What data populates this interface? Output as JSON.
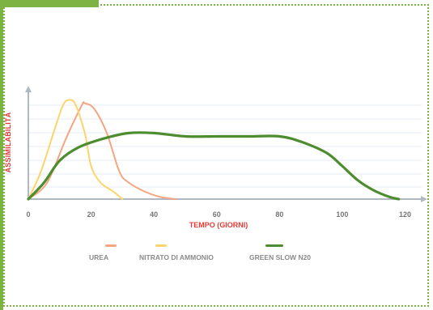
{
  "chart_data": {
    "type": "line",
    "xlabel": "TEMPO (GIORNI)",
    "ylabel": "ASSIMILABILITÀ",
    "x_ticks": [
      0,
      20,
      40,
      60,
      80,
      100,
      120
    ],
    "xlim": [
      0,
      124
    ],
    "ylim": [
      0,
      100
    ],
    "grid": true,
    "legend_position": "bottom",
    "series": [
      {
        "name": "UREA",
        "color": "#f4a582",
        "points": [
          [
            0,
            0
          ],
          [
            6,
            15
          ],
          [
            12,
            55
          ],
          [
            17,
            85
          ],
          [
            18,
            87
          ],
          [
            21,
            82
          ],
          [
            25,
            60
          ],
          [
            29,
            25
          ],
          [
            32,
            15
          ],
          [
            37,
            7
          ],
          [
            42,
            2
          ],
          [
            47,
            0
          ]
        ]
      },
      {
        "name": "NITRATO DI AMMONIO",
        "color": "#fbd56b",
        "points": [
          [
            0,
            0
          ],
          [
            4,
            25
          ],
          [
            8,
            60
          ],
          [
            11,
            85
          ],
          [
            13,
            90
          ],
          [
            15,
            86
          ],
          [
            18,
            60
          ],
          [
            20,
            30
          ],
          [
            23,
            15
          ],
          [
            27,
            7
          ],
          [
            30,
            0
          ]
        ]
      },
      {
        "name": "GREEN SLOW N20",
        "color": "#4e8d2f",
        "points": [
          [
            0,
            0
          ],
          [
            5,
            15
          ],
          [
            10,
            35
          ],
          [
            16,
            47
          ],
          [
            24,
            55
          ],
          [
            32,
            60
          ],
          [
            40,
            60
          ],
          [
            50,
            57
          ],
          [
            60,
            57
          ],
          [
            70,
            57
          ],
          [
            80,
            57
          ],
          [
            87,
            52
          ],
          [
            95,
            42
          ],
          [
            100,
            30
          ],
          [
            105,
            17
          ],
          [
            110,
            8
          ],
          [
            115,
            2
          ],
          [
            118,
            0
          ]
        ]
      }
    ]
  },
  "legend": {
    "items": [
      {
        "label": "UREA",
        "color": "#f4a582"
      },
      {
        "label": "NITRATO DI AMMONIO",
        "color": "#fbd56b"
      },
      {
        "label": "GREEN SLOW N20",
        "color": "#4e8d2f"
      }
    ]
  }
}
